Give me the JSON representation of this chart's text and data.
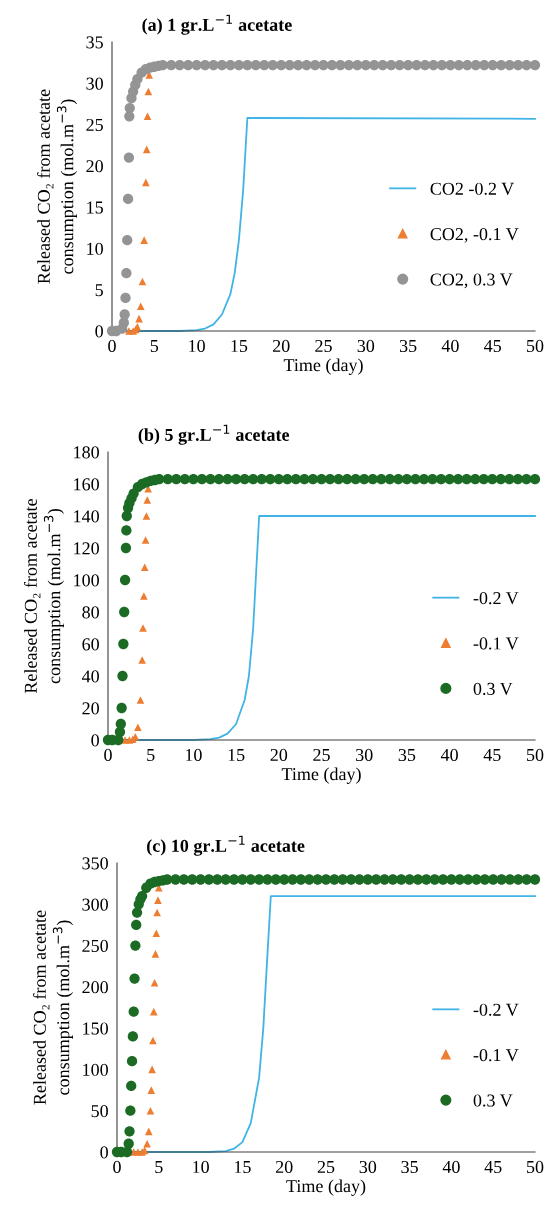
{
  "chart_data": [
    {
      "type": "scatter",
      "title": "(a) 1 gr.L$^{−1}$ acetate",
      "xlabel": "Time (day)",
      "ylabel": "Released CO₂ from acetate\nconsumption (mol.m$^{−3}$)",
      "xlim": [
        0,
        50
      ],
      "xticks": [
        0,
        5,
        10,
        15,
        20,
        25,
        30,
        35,
        40,
        45,
        50
      ],
      "ylim": [
        0,
        35
      ],
      "yticks": [
        0,
        5,
        10,
        15,
        20,
        25,
        30,
        35
      ],
      "grid": false,
      "legend": "right",
      "series": [
        {
          "name": "CO2 -0.2 V",
          "type": "line",
          "color": "#41b4e6",
          "marker": "none",
          "x": [
            0,
            8,
            10,
            11,
            12,
            13,
            14,
            14.5,
            15,
            15.5,
            16,
            50
          ],
          "values": [
            0,
            0,
            0.1,
            0.3,
            0.8,
            2,
            4.5,
            7,
            11,
            17,
            25.8,
            25.7
          ]
        },
        {
          "name": "CO2, -0.1 V",
          "color": "#ed7d31",
          "marker": "triangle",
          "x": [
            2,
            2.5,
            2.8,
            3.0,
            3.2,
            3.4,
            3.6,
            3.8,
            4.0,
            4.1,
            4.2,
            4.3,
            4.4
          ],
          "values": [
            0,
            0,
            0.2,
            0.5,
            1.5,
            3,
            6,
            11,
            18,
            22,
            26,
            29,
            31
          ]
        },
        {
          "name": "CO2, 0.3 V",
          "color": "#949494",
          "marker": "circle",
          "x": [
            0,
            0.5,
            1.2,
            1.4,
            1.5,
            1.6,
            1.7,
            1.8,
            1.9,
            2.0,
            2.05,
            2.1,
            2.3,
            2.5,
            2.75,
            3,
            3.5,
            4,
            4.5,
            5,
            5.5,
            6,
            7,
            8,
            9,
            10,
            11,
            12,
            13,
            14,
            15,
            16,
            17,
            18,
            19,
            20,
            21,
            22,
            23,
            24,
            25,
            26,
            27,
            28,
            29,
            30,
            31,
            32,
            33,
            34,
            35,
            36,
            37,
            38,
            39,
            40,
            41,
            42,
            43,
            44,
            45,
            46,
            47,
            48,
            49,
            50
          ],
          "values": [
            0,
            0,
            0.3,
            1,
            2,
            4,
            7,
            11,
            16,
            21,
            26,
            27,
            28.2,
            29,
            29.8,
            30.5,
            31.3,
            31.7,
            31.9,
            32,
            32.1,
            32.2,
            32.2,
            32.2,
            32.2,
            32.2,
            32.2,
            32.2,
            32.2,
            32.2,
            32.2,
            32.2,
            32.2,
            32.2,
            32.2,
            32.2,
            32.2,
            32.2,
            32.2,
            32.2,
            32.2,
            32.2,
            32.2,
            32.2,
            32.2,
            32.2,
            32.2,
            32.2,
            32.2,
            32.2,
            32.2,
            32.2,
            32.2,
            32.2,
            32.2,
            32.2,
            32.2,
            32.2,
            32.2,
            32.2,
            32.2,
            32.2,
            32.2,
            32.2,
            32.2,
            32.2
          ]
        }
      ]
    },
    {
      "type": "scatter",
      "title": "(b) 5 gr.L$^{−1}$ acetate",
      "xlabel": "Time (day)",
      "ylabel": "Released CO₂ from acetate\nconsumption (mol.m$^{−3}$)",
      "xlim": [
        0,
        50
      ],
      "xticks": [
        0,
        5,
        10,
        15,
        20,
        25,
        30,
        35,
        40,
        45,
        50
      ],
      "ylim": [
        0,
        180
      ],
      "yticks": [
        0,
        20,
        40,
        60,
        80,
        100,
        120,
        140,
        160,
        180
      ],
      "grid": false,
      "legend": "right",
      "series": [
        {
          "name": "-0.2 V",
          "type": "line",
          "color": "#41b4e6",
          "marker": "none",
          "x": [
            0,
            10,
            12,
            13,
            14,
            15,
            16,
            16.5,
            17,
            17.4,
            17.7,
            50
          ],
          "values": [
            0,
            0,
            0.5,
            1.5,
            4,
            10,
            25,
            40,
            70,
            110,
            140,
            140
          ]
        },
        {
          "name": "-0.1 V",
          "color": "#ed7d31",
          "marker": "triangle",
          "x": [
            2,
            2.5,
            2.9,
            3.2,
            3.5,
            3.8,
            4.0,
            4.1,
            4.2,
            4.3,
            4.4,
            4.5,
            4.6,
            4.7
          ],
          "values": [
            0,
            0,
            0.5,
            2,
            8,
            25,
            50,
            70,
            90,
            108,
            125,
            140,
            150,
            157
          ]
        },
        {
          "name": "0.3 V",
          "color": "#1b6b24",
          "marker": "circle",
          "x": [
            0,
            0.5,
            1.2,
            1.4,
            1.5,
            1.6,
            1.7,
            1.8,
            1.9,
            2.0,
            2.1,
            2.15,
            2.2,
            2.35,
            2.5,
            2.75,
            3,
            3.5,
            4,
            4.5,
            5,
            5.5,
            6,
            7,
            8,
            9,
            10,
            11,
            12,
            13,
            14,
            15,
            16,
            17,
            18,
            19,
            20,
            21,
            22,
            23,
            24,
            25,
            26,
            27,
            28,
            29,
            30,
            31,
            32,
            33,
            34,
            35,
            36,
            37,
            38,
            39,
            40,
            41,
            42,
            43,
            44,
            45,
            46,
            47,
            48,
            49,
            50
          ],
          "values": [
            0,
            0,
            0,
            5,
            10,
            20,
            40,
            60,
            80,
            100,
            120,
            131,
            140,
            145,
            148,
            151,
            154,
            158,
            160,
            161,
            162,
            162.5,
            163,
            163,
            163,
            163,
            163,
            163,
            163,
            163,
            163,
            163,
            163,
            163,
            163,
            163,
            163,
            163,
            163,
            163,
            163,
            163,
            163,
            163,
            163,
            163,
            163,
            163,
            163,
            163,
            163,
            163,
            163,
            163,
            163,
            163,
            163,
            163,
            163,
            163,
            163,
            163,
            163,
            163,
            163,
            163,
            163
          ]
        }
      ]
    },
    {
      "type": "scatter",
      "title": "(c) 10 gr.L$^{−1}$ acetate",
      "xlabel": "Time (day)",
      "ylabel": "Released CO₂ from acetate\nconsumption (mol.m$^{−3}$)",
      "xlim": [
        0,
        50
      ],
      "xticks": [
        0,
        5,
        10,
        15,
        20,
        25,
        30,
        35,
        40,
        45,
        50
      ],
      "ylim": [
        0,
        350
      ],
      "yticks": [
        0,
        50,
        100,
        150,
        200,
        250,
        300,
        350
      ],
      "grid": false,
      "legend": "right",
      "series": [
        {
          "name": "-0.2 V",
          "type": "line",
          "color": "#41b4e6",
          "marker": "none",
          "x": [
            0,
            11,
            13,
            14,
            15,
            16,
            17,
            17.5,
            18,
            18.4,
            50
          ],
          "values": [
            0,
            0,
            1,
            4,
            12,
            35,
            90,
            150,
            240,
            310,
            310
          ]
        },
        {
          "name": "-0.1 V",
          "color": "#ed7d31",
          "marker": "triangle",
          "x": [
            2,
            2.5,
            3.0,
            3.3,
            3.6,
            3.8,
            4.0,
            4.1,
            4.2,
            4.3,
            4.4,
            4.5,
            4.6,
            4.7,
            4.8,
            4.9,
            5.0
          ],
          "values": [
            0,
            0,
            0,
            2,
            10,
            25,
            50,
            75,
            100,
            135,
            170,
            205,
            240,
            265,
            290,
            305,
            320
          ]
        },
        {
          "name": "0.3 V",
          "color": "#1b6b24",
          "marker": "circle",
          "x": [
            0,
            0.5,
            1.2,
            1.4,
            1.5,
            1.6,
            1.7,
            1.8,
            1.9,
            2.0,
            2.1,
            2.2,
            2.3,
            2.4,
            2.6,
            2.8,
            3,
            3.5,
            4,
            4.5,
            5,
            5.5,
            6,
            7,
            8,
            9,
            10,
            11,
            12,
            13,
            14,
            15,
            16,
            17,
            18,
            19,
            20,
            21,
            22,
            23,
            24,
            25,
            26,
            27,
            28,
            29,
            30,
            31,
            32,
            33,
            34,
            35,
            36,
            37,
            38,
            39,
            40,
            41,
            42,
            43,
            44,
            45,
            46,
            47,
            48,
            49,
            50
          ],
          "values": [
            0,
            0,
            0,
            10,
            25,
            50,
            80,
            110,
            140,
            170,
            210,
            250,
            275,
            290,
            300,
            306,
            310,
            320,
            325,
            327,
            328,
            329,
            330,
            330,
            330,
            330,
            330,
            330,
            330,
            330,
            330,
            330,
            330,
            330,
            330,
            330,
            330,
            330,
            330,
            330,
            330,
            330,
            330,
            330,
            330,
            330,
            330,
            330,
            330,
            330,
            330,
            330,
            330,
            330,
            330,
            330,
            330,
            330,
            330,
            330,
            330,
            330,
            330,
            330,
            330,
            330,
            330
          ]
        }
      ]
    }
  ]
}
